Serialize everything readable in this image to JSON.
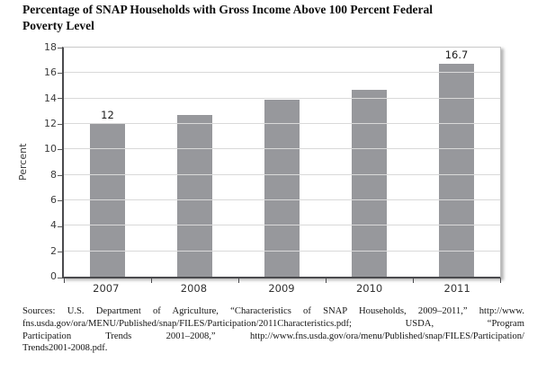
{
  "page": {
    "title_line1": "Percentage of SNAP Households with Gross Income Above 100 Percent Federal",
    "title_line2": "Poverty Level"
  },
  "chart_data": {
    "type": "bar",
    "title": "Percentage of SNAP Households with Gross Income Above 100 Percent Federal Poverty Level",
    "xlabel": "",
    "ylabel": "Percent",
    "ylim": [
      0,
      18
    ],
    "yticks": [
      0,
      2,
      4,
      6,
      8,
      10,
      12,
      14,
      16,
      18
    ],
    "grid": true,
    "legend": "none",
    "categories": [
      "2007",
      "2008",
      "2009",
      "2010",
      "2011"
    ],
    "values": [
      12,
      12.7,
      13.9,
      14.7,
      16.7
    ],
    "point_labels": [
      "12",
      null,
      null,
      null,
      "16.7"
    ],
    "bar_color": "#97989c",
    "axis_color": "#4a4a4d",
    "gridline_color": "#d9d9d9"
  },
  "sources": {
    "lines": [
      "Sources: U.S. Department of Agriculture, “Characteristics of SNAP Households, 2009–2011,” http://www.",
      "fns.usda.gov/ora/MENU/Published/snap/FILES/Participation/2011Characteristics.pdf; USDA, “Program",
      "Participation Trends 2001–2008,” http://www.fns.usda.gov/ora/menu/Published/snap/FILES/Participation/",
      "Trends2001-2008.pdf."
    ]
  }
}
